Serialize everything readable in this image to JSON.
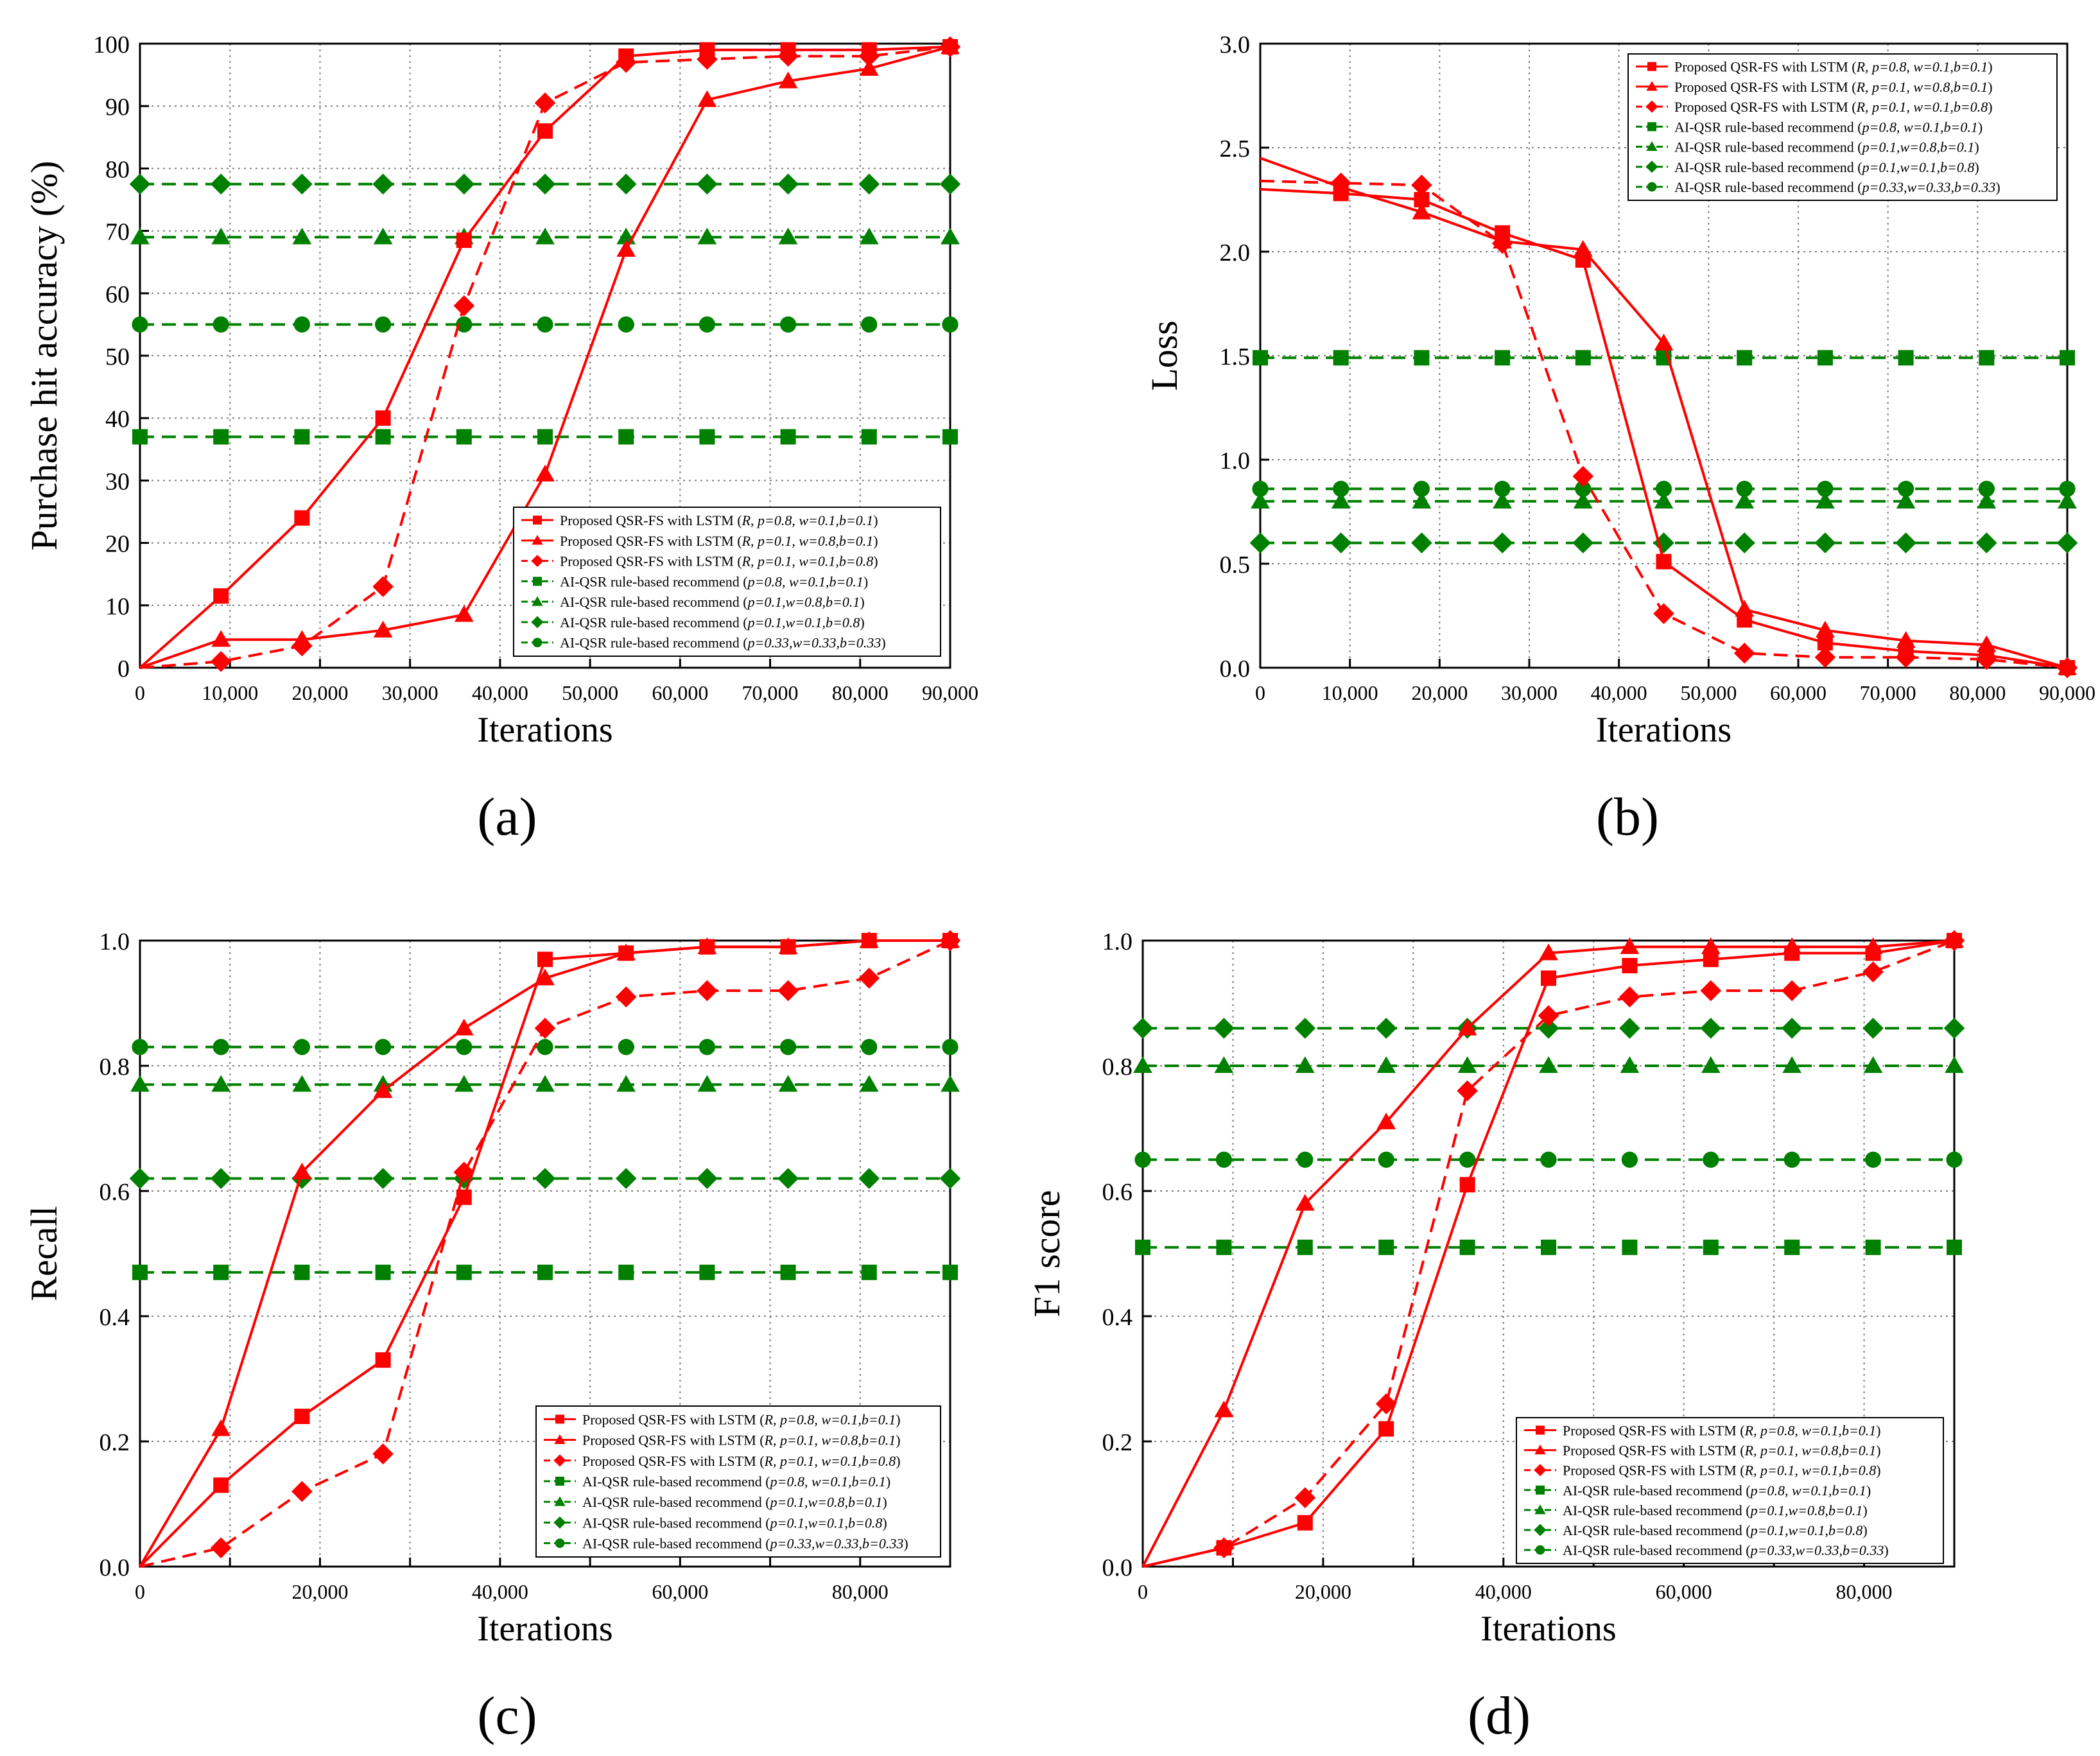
{
  "figure": {
    "background": "#ffffff"
  },
  "colors": {
    "proposed": "#ff0000",
    "baseline": "#008000",
    "grid": "#808080"
  },
  "legend_labels": [
    {
      "pre": "Proposed QSR-FS with LSTM (",
      "params": "R, p=0.8, w=0.1,b=0.1",
      "post": ")"
    },
    {
      "pre": "Proposed QSR-FS with LSTM (",
      "params": "R, p=0.1, w=0.8,b=0.1",
      "post": ")"
    },
    {
      "pre": "Proposed QSR-FS with LSTM (",
      "params": "R, p=0.1, w=0.1,b=0.8",
      "post": ")"
    },
    {
      "pre": "AI-QSR rule-based recommend (",
      "params": "p=0.8, w=0.1,b=0.1",
      "post": ")"
    },
    {
      "pre": "AI-QSR rule-based recommend (",
      "params": "p=0.1,w=0.8,b=0.1",
      "post": ")"
    },
    {
      "pre": "AI-QSR rule-based recommend (",
      "params": "p=0.1,w=0.1,b=0.8",
      "post": ")"
    },
    {
      "pre": "AI-QSR rule-based recommend (",
      "params": "p=0.33,w=0.33,b=0.33",
      "post": ")"
    }
  ],
  "chart_data": [
    {
      "id": "a",
      "panel_label": "(a)",
      "type": "line",
      "xlabel": "Iterations",
      "ylabel": "Purchase hit accuracy (%)",
      "xlim": [
        0,
        90000
      ],
      "ylim": [
        0,
        100
      ],
      "xticks": [
        0,
        10000,
        20000,
        30000,
        40000,
        50000,
        60000,
        70000,
        80000,
        90000
      ],
      "xtick_labels": [
        "0",
        "10,000",
        "20,000",
        "30,000",
        "40,000",
        "50,000",
        "60,000",
        "70,000",
        "80,000",
        "90,000"
      ],
      "yticks": [
        0,
        10,
        20,
        30,
        40,
        50,
        60,
        70,
        80,
        90,
        100
      ],
      "ytick_labels": [
        "0",
        "10",
        "20",
        "30",
        "40",
        "50",
        "60",
        "70",
        "80",
        "90",
        "100"
      ],
      "legend_position": "lower-right",
      "grid": true,
      "x": [
        0,
        9000,
        18000,
        27000,
        36000,
        45000,
        54000,
        63000,
        72000,
        81000,
        90000
      ],
      "series": [
        {
          "name": "Proposed QSR-FS with LSTM (R, p=0.8, w=0.1,b=0.1)",
          "color": "red",
          "marker": "square",
          "dash": false,
          "values": [
            0,
            11.5,
            24,
            40,
            68.5,
            86,
            98,
            99,
            99,
            99,
            99.5
          ]
        },
        {
          "name": "Proposed QSR-FS with LSTM (R, p=0.1, w=0.8,b=0.1)",
          "color": "red",
          "marker": "triangle",
          "dash": false,
          "values": [
            0,
            4.5,
            4.5,
            6,
            8.5,
            31,
            67,
            91,
            94,
            96,
            99.5
          ]
        },
        {
          "name": "Proposed QSR-FS with LSTM (R, p=0.1, w=0.1,b=0.8)",
          "color": "red",
          "marker": "diamond",
          "dash": true,
          "values": [
            0,
            1,
            3.5,
            13,
            58,
            90.5,
            97,
            97.5,
            98,
            98,
            99.5
          ]
        },
        {
          "name": "AI-QSR rule-based recommend (p=0.8, w=0.1,b=0.1)",
          "color": "green",
          "marker": "square",
          "dash": true,
          "values": [
            37,
            37,
            37,
            37,
            37,
            37,
            37,
            37,
            37,
            37,
            37
          ]
        },
        {
          "name": "AI-QSR rule-based recommend (p=0.1,w=0.8,b=0.1)",
          "color": "green",
          "marker": "triangle",
          "dash": true,
          "values": [
            69,
            69,
            69,
            69,
            69,
            69,
            69,
            69,
            69,
            69,
            69
          ]
        },
        {
          "name": "AI-QSR rule-based recommend (p=0.1,w=0.1,b=0.8)",
          "color": "green",
          "marker": "diamond",
          "dash": true,
          "values": [
            77.5,
            77.5,
            77.5,
            77.5,
            77.5,
            77.5,
            77.5,
            77.5,
            77.5,
            77.5,
            77.5
          ]
        },
        {
          "name": "AI-QSR rule-based recommend (p=0.33,w=0.33,b=0.33)",
          "color": "green",
          "marker": "circle",
          "dash": true,
          "values": [
            55,
            55,
            55,
            55,
            55,
            55,
            55,
            55,
            55,
            55,
            55
          ]
        }
      ]
    },
    {
      "id": "b",
      "panel_label": "(b)",
      "type": "line",
      "xlabel": "Iterations",
      "ylabel": "Loss",
      "xlim": [
        0,
        90000
      ],
      "ylim": [
        0,
        3
      ],
      "xticks": [
        0,
        10000,
        20000,
        30000,
        40000,
        50000,
        60000,
        70000,
        80000,
        90000
      ],
      "xtick_labels": [
        "0",
        "10,000",
        "20,000",
        "30,000",
        "40,000",
        "50,000",
        "60,000",
        "70,000",
        "80,000",
        "90,000"
      ],
      "yticks": [
        0,
        0.5,
        1.0,
        1.5,
        2.0,
        2.5,
        3.0
      ],
      "ytick_labels": [
        "0.0",
        "0.5",
        "1.0",
        "1.5",
        "2.0",
        "2.5",
        "3.0"
      ],
      "legend_position": "top-right",
      "grid": true,
      "x": [
        0,
        9000,
        18000,
        27000,
        36000,
        45000,
        54000,
        63000,
        72000,
        81000,
        90000
      ],
      "series": [
        {
          "name": "Proposed QSR-FS with LSTM (R, p=0.8, w=0.1,b=0.1)",
          "color": "red",
          "marker": "square",
          "dash": false,
          "values": [
            2.3,
            2.28,
            2.25,
            2.09,
            1.96,
            0.51,
            0.23,
            0.12,
            0.08,
            0.06,
            0
          ]
        },
        {
          "name": "Proposed QSR-FS with LSTM (R, p=0.1, w=0.8,b=0.1)",
          "color": "red",
          "marker": "triangle",
          "dash": false,
          "values": [
            2.45,
            2.31,
            2.19,
            2.05,
            2.01,
            1.56,
            0.28,
            0.18,
            0.13,
            0.11,
            0
          ]
        },
        {
          "name": "Proposed QSR-FS with LSTM (R, p=0.1, w=0.1,b=0.8)",
          "color": "red",
          "marker": "diamond",
          "dash": true,
          "values": [
            2.34,
            2.33,
            2.32,
            2.04,
            0.92,
            0.26,
            0.07,
            0.05,
            0.05,
            0.04,
            0
          ]
        },
        {
          "name": "AI-QSR rule-based recommend (p=0.8, w=0.1,b=0.1)",
          "color": "green",
          "marker": "square",
          "dash": true,
          "values": [
            1.49,
            1.49,
            1.49,
            1.49,
            1.49,
            1.49,
            1.49,
            1.49,
            1.49,
            1.49,
            1.49
          ]
        },
        {
          "name": "AI-QSR rule-based recommend (p=0.1,w=0.8,b=0.1)",
          "color": "green",
          "marker": "triangle",
          "dash": true,
          "values": [
            0.8,
            0.8,
            0.8,
            0.8,
            0.8,
            0.8,
            0.8,
            0.8,
            0.8,
            0.8,
            0.8
          ]
        },
        {
          "name": "AI-QSR rule-based recommend (p=0.1,w=0.1,b=0.8)",
          "color": "green",
          "marker": "diamond",
          "dash": true,
          "values": [
            0.6,
            0.6,
            0.6,
            0.6,
            0.6,
            0.6,
            0.6,
            0.6,
            0.6,
            0.6,
            0.6
          ]
        },
        {
          "name": "AI-QSR rule-based recommend (p=0.33,w=0.33,b=0.33)",
          "color": "green",
          "marker": "circle",
          "dash": true,
          "values": [
            0.86,
            0.86,
            0.86,
            0.86,
            0.86,
            0.86,
            0.86,
            0.86,
            0.86,
            0.86,
            0.86
          ]
        }
      ]
    },
    {
      "id": "c",
      "panel_label": "(c)",
      "type": "line",
      "xlabel": "Iterations",
      "ylabel": "Recall",
      "xlim": [
        0,
        90000
      ],
      "ylim": [
        0,
        1
      ],
      "xticks": [
        0,
        10000,
        20000,
        30000,
        40000,
        50000,
        60000,
        70000,
        80000,
        90000
      ],
      "xtick_labels": [
        "0",
        "",
        "20,000",
        "",
        "40,000",
        "",
        "60,000",
        "",
        "80,000",
        ""
      ],
      "yticks": [
        0,
        0.2,
        0.4,
        0.6,
        0.8,
        1.0
      ],
      "ytick_labels": [
        "0.0",
        "0.2",
        "0.4",
        "0.6",
        "0.8",
        "1.0"
      ],
      "legend_position": "lower-right",
      "grid": true,
      "x": [
        0,
        9000,
        18000,
        27000,
        36000,
        45000,
        54000,
        63000,
        72000,
        81000,
        90000
      ],
      "series": [
        {
          "name": "Proposed QSR-FS with LSTM (R, p=0.8, w=0.1,b=0.1)",
          "color": "red",
          "marker": "square",
          "dash": false,
          "values": [
            0,
            0.13,
            0.24,
            0.33,
            0.59,
            0.97,
            0.98,
            0.99,
            0.99,
            1.0,
            1.0
          ]
        },
        {
          "name": "Proposed QSR-FS with LSTM (R, p=0.1, w=0.8,b=0.1)",
          "color": "red",
          "marker": "triangle",
          "dash": false,
          "values": [
            0,
            0.22,
            0.63,
            0.76,
            0.86,
            0.94,
            0.98,
            0.99,
            0.99,
            1.0,
            1.0
          ]
        },
        {
          "name": "Proposed QSR-FS with LSTM (R, p=0.1, w=0.1,b=0.8)",
          "color": "red",
          "marker": "diamond",
          "dash": true,
          "values": [
            0,
            0.03,
            0.12,
            0.18,
            0.63,
            0.86,
            0.91,
            0.92,
            0.92,
            0.94,
            1.0
          ]
        },
        {
          "name": "AI-QSR rule-based recommend (p=0.8, w=0.1,b=0.1)",
          "color": "green",
          "marker": "square",
          "dash": true,
          "values": [
            0.47,
            0.47,
            0.47,
            0.47,
            0.47,
            0.47,
            0.47,
            0.47,
            0.47,
            0.47,
            0.47
          ]
        },
        {
          "name": "AI-QSR rule-based recommend (p=0.1,w=0.8,b=0.1)",
          "color": "green",
          "marker": "triangle",
          "dash": true,
          "values": [
            0.77,
            0.77,
            0.77,
            0.77,
            0.77,
            0.77,
            0.77,
            0.77,
            0.77,
            0.77,
            0.77
          ]
        },
        {
          "name": "AI-QSR rule-based recommend (p=0.1,w=0.1,b=0.8)",
          "color": "green",
          "marker": "diamond",
          "dash": true,
          "values": [
            0.62,
            0.62,
            0.62,
            0.62,
            0.62,
            0.62,
            0.62,
            0.62,
            0.62,
            0.62,
            0.62
          ]
        },
        {
          "name": "AI-QSR rule-based recommend (p=0.33,w=0.33,b=0.33)",
          "color": "green",
          "marker": "circle",
          "dash": true,
          "values": [
            0.83,
            0.83,
            0.83,
            0.83,
            0.83,
            0.83,
            0.83,
            0.83,
            0.83,
            0.83,
            0.83
          ]
        }
      ]
    },
    {
      "id": "d",
      "panel_label": "(d)",
      "type": "line",
      "xlabel": "Iterations",
      "ylabel": "F1 score",
      "xlim": [
        0,
        90000
      ],
      "ylim": [
        0,
        1
      ],
      "xticks": [
        0,
        10000,
        20000,
        30000,
        40000,
        50000,
        60000,
        70000,
        80000,
        90000
      ],
      "xtick_labels": [
        "0",
        "",
        "20,000",
        "",
        "40,000",
        "",
        "60,000",
        "",
        "80,000",
        ""
      ],
      "yticks": [
        0,
        0.2,
        0.4,
        0.6,
        0.8,
        1.0
      ],
      "ytick_labels": [
        "0.0",
        "0.2",
        "0.4",
        "0.6",
        "0.8",
        "1.0"
      ],
      "legend_position": "lower-right",
      "grid": true,
      "x": [
        0,
        9000,
        18000,
        27000,
        36000,
        45000,
        54000,
        63000,
        72000,
        81000,
        90000
      ],
      "series": [
        {
          "name": "Proposed QSR-FS with LSTM (R, p=0.8, w=0.1,b=0.1)",
          "color": "red",
          "marker": "square",
          "dash": false,
          "values": [
            0,
            0.03,
            0.07,
            0.22,
            0.61,
            0.94,
            0.96,
            0.97,
            0.98,
            0.98,
            1.0
          ]
        },
        {
          "name": "Proposed QSR-FS with LSTM (R, p=0.1, w=0.8,b=0.1)",
          "color": "red",
          "marker": "triangle",
          "dash": false,
          "values": [
            0,
            0.25,
            0.58,
            0.71,
            0.86,
            0.98,
            0.99,
            0.99,
            0.99,
            0.99,
            1.0
          ]
        },
        {
          "name": "Proposed QSR-FS with LSTM (R, p=0.1, w=0.1,b=0.8)",
          "color": "red",
          "marker": "diamond",
          "dash": true,
          "values": [
            0,
            0.03,
            0.11,
            0.26,
            0.76,
            0.88,
            0.91,
            0.92,
            0.92,
            0.95,
            1.0
          ]
        },
        {
          "name": "AI-QSR rule-based recommend (p=0.8, w=0.1,b=0.1)",
          "color": "green",
          "marker": "square",
          "dash": true,
          "values": [
            0.51,
            0.51,
            0.51,
            0.51,
            0.51,
            0.51,
            0.51,
            0.51,
            0.51,
            0.51,
            0.51
          ]
        },
        {
          "name": "AI-QSR rule-based recommend (p=0.1,w=0.8,b=0.1)",
          "color": "green",
          "marker": "triangle",
          "dash": true,
          "values": [
            0.8,
            0.8,
            0.8,
            0.8,
            0.8,
            0.8,
            0.8,
            0.8,
            0.8,
            0.8,
            0.8
          ]
        },
        {
          "name": "AI-QSR rule-based recommend (p=0.1,w=0.1,b=0.8)",
          "color": "green",
          "marker": "diamond",
          "dash": true,
          "values": [
            0.86,
            0.86,
            0.86,
            0.86,
            0.86,
            0.86,
            0.86,
            0.86,
            0.86,
            0.86,
            0.86
          ]
        },
        {
          "name": "AI-QSR rule-based recommend (p=0.33,w=0.33,b=0.33)",
          "color": "green",
          "marker": "circle",
          "dash": true,
          "values": [
            0.65,
            0.65,
            0.65,
            0.65,
            0.65,
            0.65,
            0.65,
            0.65,
            0.65,
            0.65,
            0.65
          ]
        }
      ]
    }
  ]
}
